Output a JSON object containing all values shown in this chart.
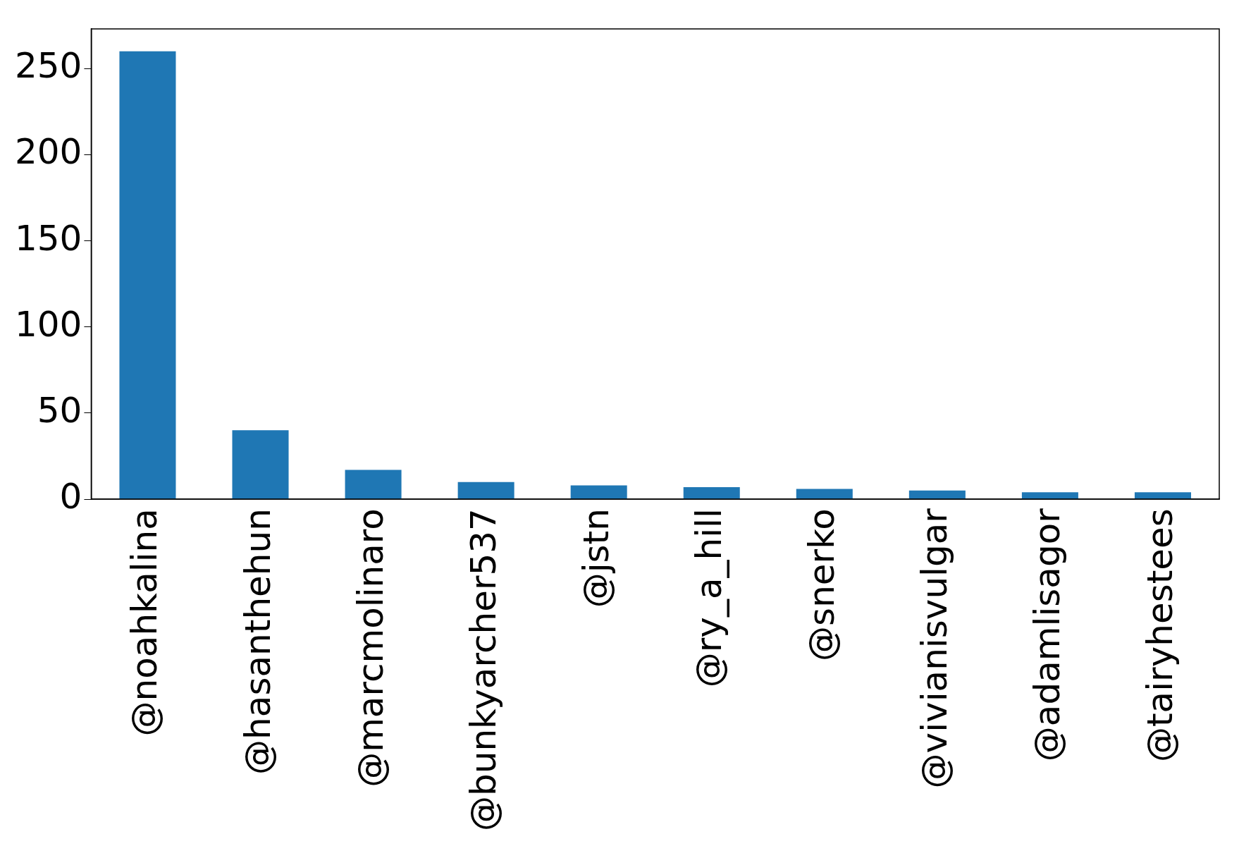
{
  "chart_data": {
    "type": "bar",
    "categories": [
      "@noahkalina",
      "@hasanthehun",
      "@marcmolinaro",
      "@bunkyarcher537",
      "@jstn",
      "@ry_a_hill",
      "@snerko",
      "@vivianisvulgar",
      "@adamlisagor",
      "@tairyhestees"
    ],
    "values": [
      260,
      40,
      17,
      10,
      8,
      7,
      6,
      5,
      4,
      4
    ],
    "color": "#1f77b4",
    "ylim": [
      0,
      273
    ],
    "yticks": [
      0,
      50,
      100,
      150,
      200,
      250
    ],
    "grid": false,
    "legend": false
  }
}
